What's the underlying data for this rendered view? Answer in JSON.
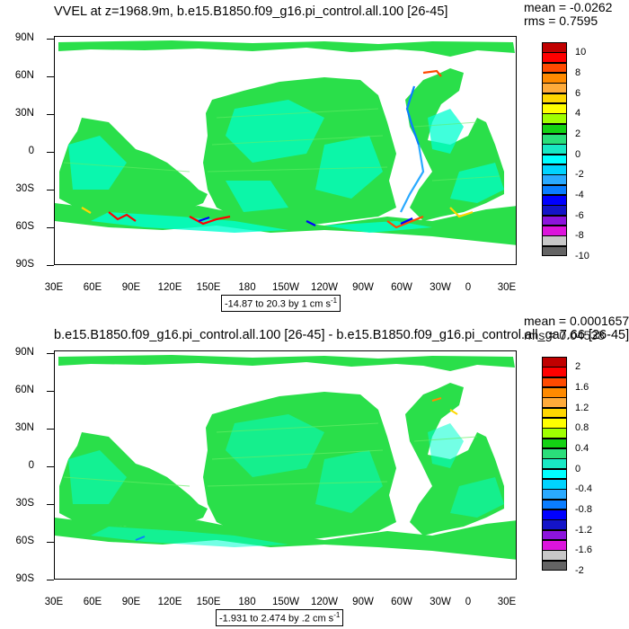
{
  "panels": [
    {
      "title": "VVEL at z=1968.9m, b.e15.B1850.f09_g16.pi_control.all.100 [26-45]",
      "mean_text": "mean = -0.0262",
      "rms_text": "rms = 0.7595",
      "range_label": "-14.87 to 20.3 by 1 cm s",
      "range_sup": "-1",
      "colorbar_labels": [
        "10",
        "8",
        "6",
        "4",
        "2",
        "0",
        "-2",
        "-4",
        "-6",
        "-8",
        "-10"
      ]
    },
    {
      "title": "b.e15.B1850.f09_g16.pi_control.all.100 [26-45] - b.e15.B1850.f09_g16.pi_control.all_ga7.66 [26-45]",
      "mean_text": "mean = 0.0001657",
      "rms_text": "rms = 0.04538",
      "range_label": "-1.931 to 2.474 by .2 cm s",
      "range_sup": "-1",
      "colorbar_labels": [
        "2",
        "1.6",
        "1.2",
        "0.8",
        "0.4",
        "0",
        "-0.4",
        "-0.8",
        "-1.2",
        "-1.6",
        "-2"
      ]
    }
  ],
  "axes": {
    "y_ticks": [
      "90N",
      "60N",
      "30N",
      "0",
      "30S",
      "60S",
      "90S"
    ],
    "x_ticks": [
      "30E",
      "60E",
      "90E",
      "120E",
      "150E",
      "180",
      "150W",
      "120W",
      "90W",
      "60W",
      "30W",
      "0",
      "30E"
    ]
  },
  "colorbar_colors": [
    "#c00000",
    "#ff0000",
    "#ff4a00",
    "#ff8a00",
    "#ffab3a",
    "#ffd700",
    "#ffff00",
    "#a0ff00",
    "#14d214",
    "#2adf7a",
    "#18e8c4",
    "#00ffff",
    "#00d4ff",
    "#2aaaff",
    "#0a7dff",
    "#0000ff",
    "#1414c8",
    "#8c14dc",
    "#dc14dc",
    "#c8c8c8",
    "#646464"
  ],
  "ocean_colors": {
    "cyan": "#00ffd0",
    "green": "#2adf4a",
    "lightgreen": "#66ee66"
  }
}
